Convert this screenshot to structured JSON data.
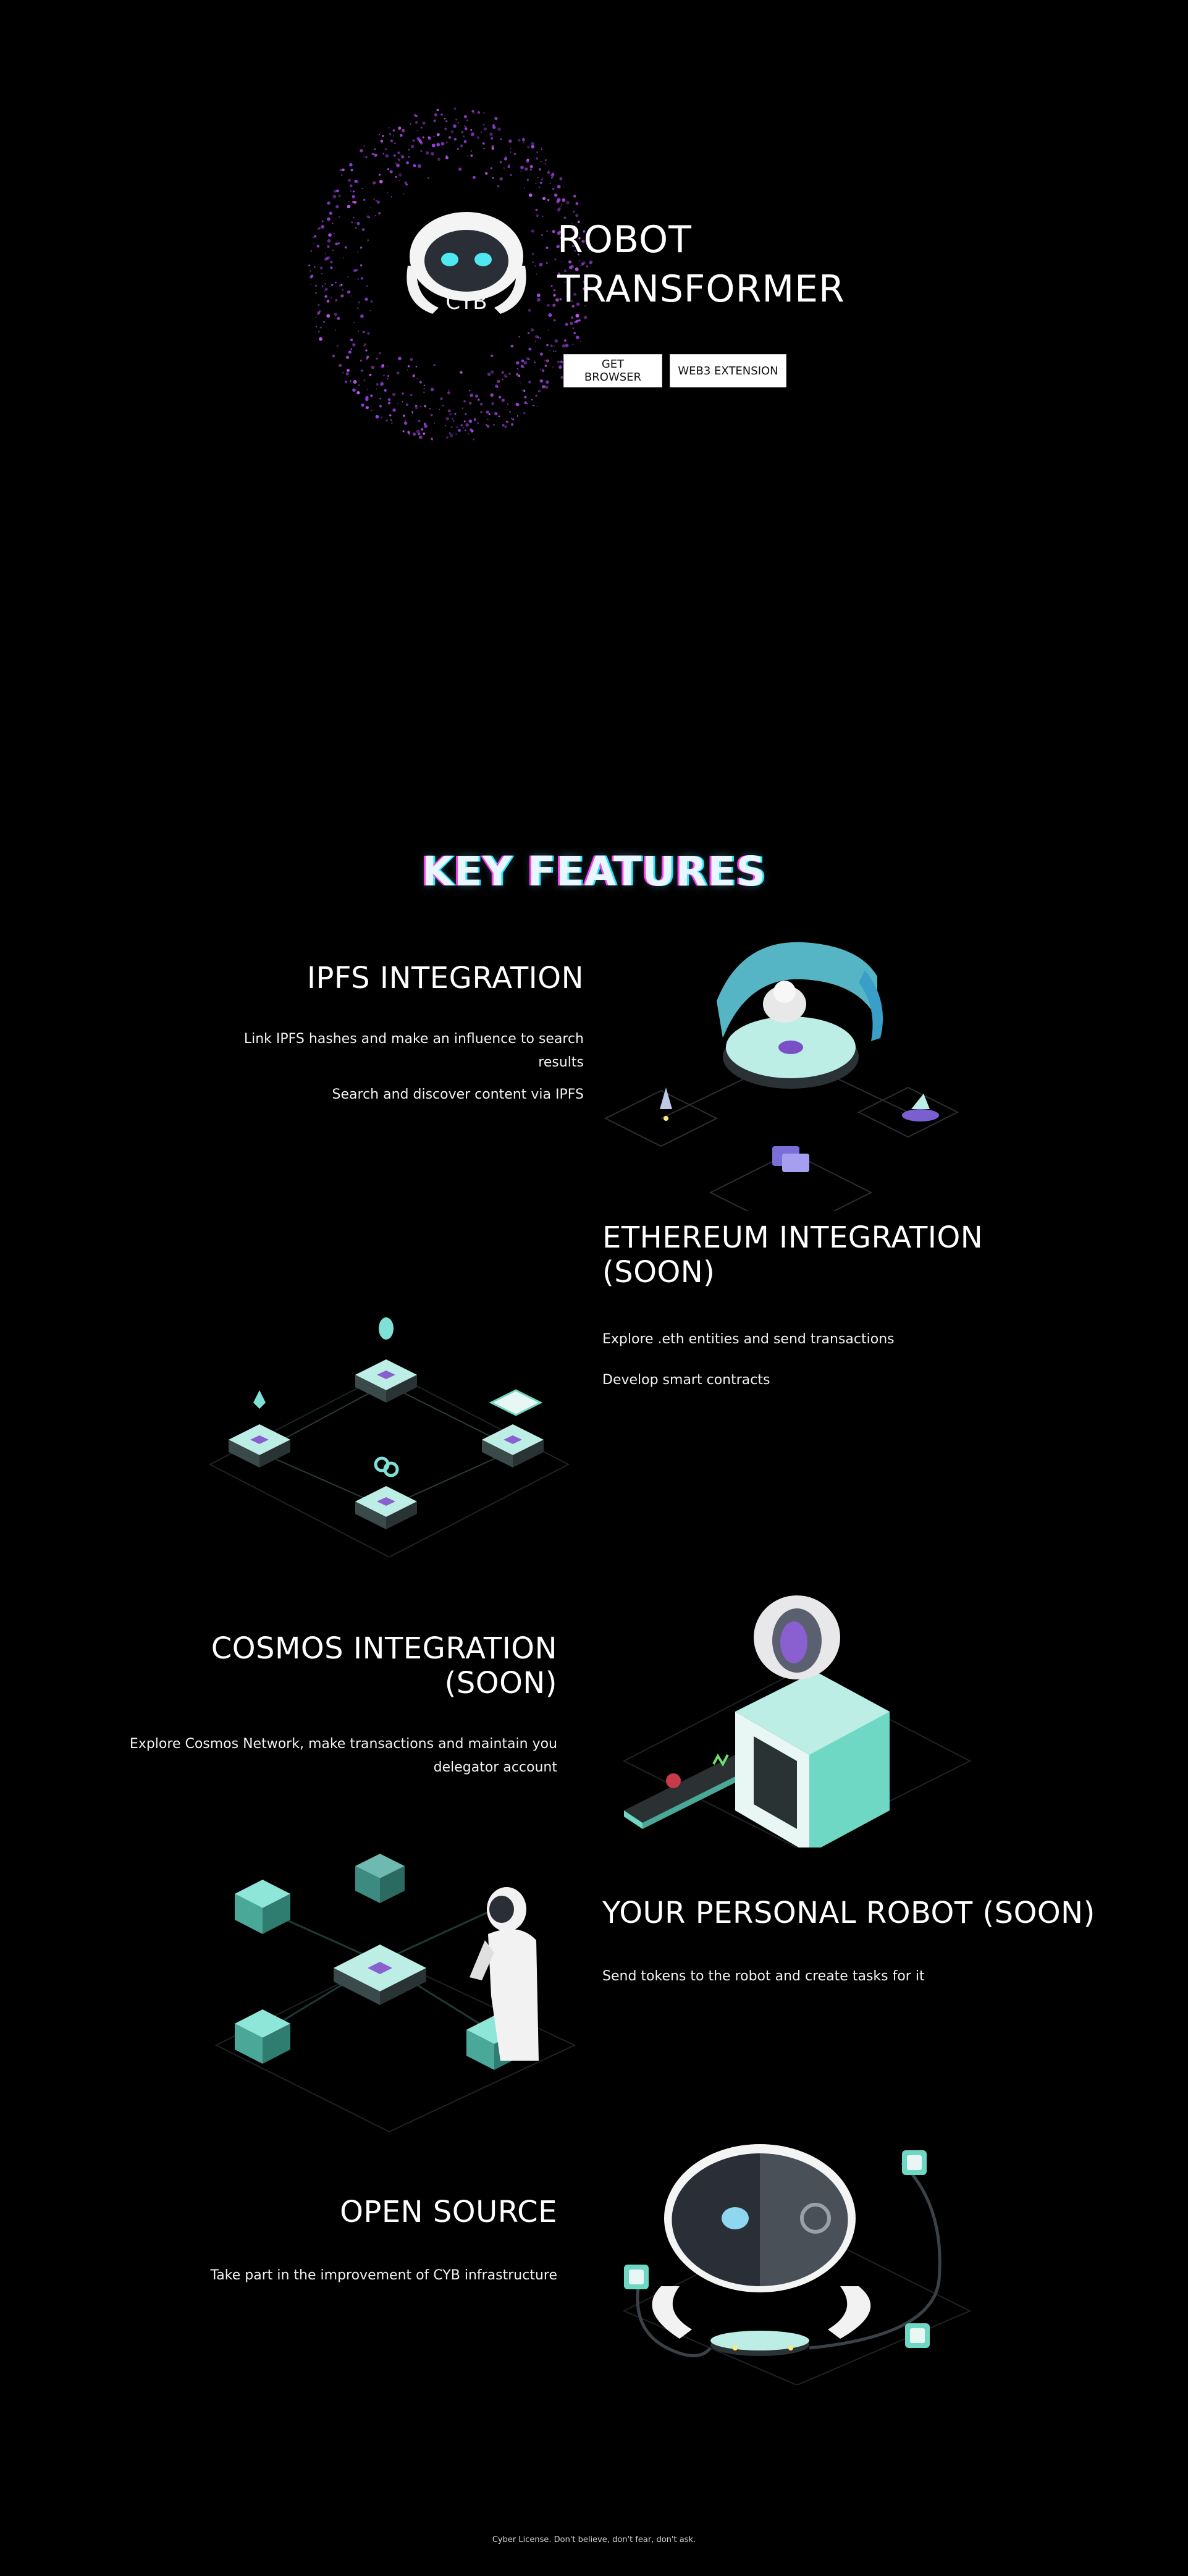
{
  "hero": {
    "title_line1": "ROBOT",
    "title_line2": "TRANSFORMER",
    "logo_text": "CYB",
    "buttons": {
      "get_browser": "GET BROWSER",
      "web3_extension": "WEB3 EXTENSION"
    }
  },
  "key_features": {
    "title": "KEY FEATURES",
    "items": [
      {
        "title": "IPFS INTEGRATION",
        "lines": [
          "Link IPFS hashes and make an influence to search",
          "results",
          "Search and discover content via IPFS"
        ]
      },
      {
        "title_line1": "ETHEREUM INTEGRATION",
        "title_line2": "(SOON)",
        "lines": [
          "Explore .eth entities and send transactions",
          "Develop smart contracts"
        ]
      },
      {
        "title": "COSMOS INTEGRATION (SOON)",
        "lines": [
          "Explore Cosmos Network, make transactions and maintain you",
          "delegator account"
        ]
      },
      {
        "title": "YOUR PERSONAL ROBOT (SOON)",
        "lines": [
          "Send tokens to the robot and create tasks for it"
        ]
      },
      {
        "title": "OPEN SOURCE",
        "lines": [
          "Take part in the improvement of CYB infrastructure"
        ]
      }
    ]
  },
  "footer": {
    "text": "Cyber License. Don't believe, don't fear, don't ask."
  },
  "colors": {
    "background": "#000000",
    "accent_teal": "#6fd8c4",
    "accent_purple": "#8a4fd6",
    "accent_pink": "#ff3df0",
    "accent_cyan": "#22e6ff",
    "robot_eye": "#4fe8f0"
  },
  "icons": [
    "cyb-robot-logo-icon",
    "particle-sphere-icon",
    "ipfs-robot-platform-icon",
    "ethereum-nodes-icon",
    "cosmos-robot-machine-icon",
    "personal-robot-astronaut-icon",
    "open-source-robot-head-icon"
  ]
}
